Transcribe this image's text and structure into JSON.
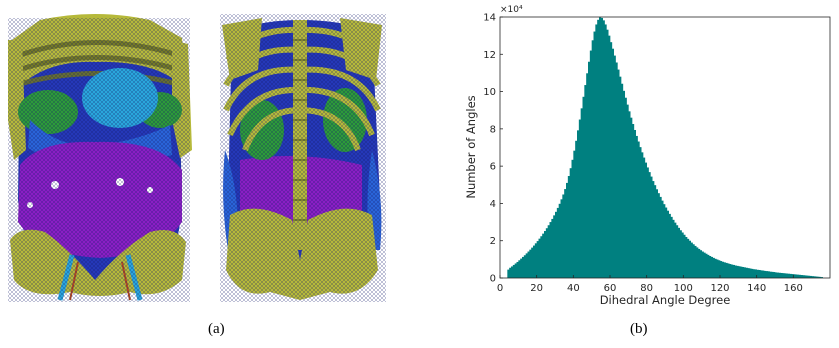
{
  "captions": {
    "a": "(a)",
    "b": "(b)"
  },
  "colors": {
    "bone": "#b6b93a",
    "bone_shade": "#6f7424",
    "mesh_blue": "#1f3fc8",
    "organ_purple": "#8a1fc4",
    "organ_green": "#2d9a3a",
    "organ_cyan": "#2aa6dc",
    "organ_blue": "#2a64d8",
    "histogram_fill": "#008080"
  },
  "chart_data": {
    "type": "bar",
    "title": "",
    "xlabel": "Dihedral Angle Degree",
    "ylabel": "Number of Angles",
    "exponent_label": "×10⁴",
    "xlim": [
      0,
      180
    ],
    "ylim": [
      0,
      14
    ],
    "xticks": [
      0,
      20,
      40,
      60,
      80,
      100,
      120,
      140,
      160
    ],
    "yticks": [
      0,
      2,
      4,
      6,
      8,
      10,
      12,
      14
    ],
    "bin_width": 1,
    "x": [
      4,
      5,
      6,
      7,
      8,
      9,
      10,
      11,
      12,
      13,
      14,
      15,
      16,
      17,
      18,
      19,
      20,
      21,
      22,
      23,
      24,
      25,
      26,
      27,
      28,
      29,
      30,
      31,
      32,
      33,
      34,
      35,
      36,
      37,
      38,
      39,
      40,
      41,
      42,
      43,
      44,
      45,
      46,
      47,
      48,
      49,
      50,
      51,
      52,
      53,
      54,
      55,
      56,
      57,
      58,
      59,
      60,
      61,
      62,
      63,
      64,
      65,
      66,
      67,
      68,
      69,
      70,
      71,
      72,
      73,
      74,
      75,
      76,
      77,
      78,
      79,
      80,
      81,
      82,
      83,
      84,
      85,
      86,
      87,
      88,
      89,
      90,
      91,
      92,
      93,
      94,
      95,
      96,
      97,
      98,
      99,
      100,
      101,
      102,
      103,
      104,
      105,
      106,
      107,
      108,
      109,
      110,
      111,
      112,
      113,
      114,
      115,
      116,
      117,
      118,
      119,
      120,
      121,
      122,
      123,
      124,
      125,
      126,
      127,
      128,
      129,
      130,
      131,
      132,
      133,
      134,
      135,
      136,
      137,
      138,
      139,
      140,
      141,
      142,
      143,
      144,
      145,
      146,
      147,
      148,
      149,
      150,
      151,
      152,
      153,
      154,
      155,
      156,
      157,
      158,
      159,
      160,
      161,
      162,
      163,
      164,
      165,
      166,
      167,
      168,
      169,
      170,
      171,
      172,
      173,
      174,
      175
    ],
    "values": [
      0.45,
      0.55,
      0.62,
      0.7,
      0.78,
      0.86,
      0.95,
      1.04,
      1.13,
      1.22,
      1.32,
      1.42,
      1.52,
      1.63,
      1.74,
      1.86,
      1.98,
      2.11,
      2.24,
      2.38,
      2.52,
      2.67,
      2.83,
      3.0,
      3.17,
      3.36,
      3.55,
      3.76,
      3.98,
      4.22,
      4.48,
      4.77,
      5.1,
      5.47,
      5.89,
      6.34,
      6.83,
      7.36,
      7.92,
      8.5,
      9.1,
      9.72,
      10.35,
      10.98,
      11.6,
      12.2,
      12.75,
      13.22,
      13.6,
      13.85,
      13.98,
      13.95,
      13.82,
      13.6,
      13.32,
      13.0,
      12.65,
      12.3,
      11.93,
      11.56,
      11.18,
      10.8,
      10.42,
      10.04,
      9.67,
      9.3,
      8.94,
      8.6,
      8.26,
      7.94,
      7.62,
      7.32,
      7.02,
      6.74,
      6.46,
      6.19,
      5.93,
      5.68,
      5.44,
      5.2,
      4.98,
      4.76,
      4.55,
      4.35,
      4.15,
      3.96,
      3.78,
      3.61,
      3.44,
      3.28,
      3.12,
      2.97,
      2.83,
      2.69,
      2.56,
      2.44,
      2.32,
      2.2,
      2.1,
      2.0,
      1.9,
      1.81,
      1.72,
      1.64,
      1.56,
      1.49,
      1.42,
      1.36,
      1.3,
      1.24,
      1.18,
      1.13,
      1.08,
      1.03,
      0.99,
      0.95,
      0.91,
      0.87,
      0.84,
      0.81,
      0.78,
      0.75,
      0.72,
      0.7,
      0.67,
      0.65,
      0.63,
      0.61,
      0.59,
      0.57,
      0.55,
      0.53,
      0.51,
      0.49,
      0.47,
      0.46,
      0.44,
      0.43,
      0.41,
      0.4,
      0.38,
      0.37,
      0.36,
      0.34,
      0.33,
      0.32,
      0.3,
      0.29,
      0.28,
      0.27,
      0.26,
      0.25,
      0.24,
      0.23,
      0.22,
      0.21,
      0.2,
      0.19,
      0.18,
      0.17,
      0.16,
      0.15,
      0.14,
      0.13,
      0.12,
      0.11,
      0.1,
      0.09,
      0.08,
      0.07,
      0.06,
      0.05
    ]
  }
}
